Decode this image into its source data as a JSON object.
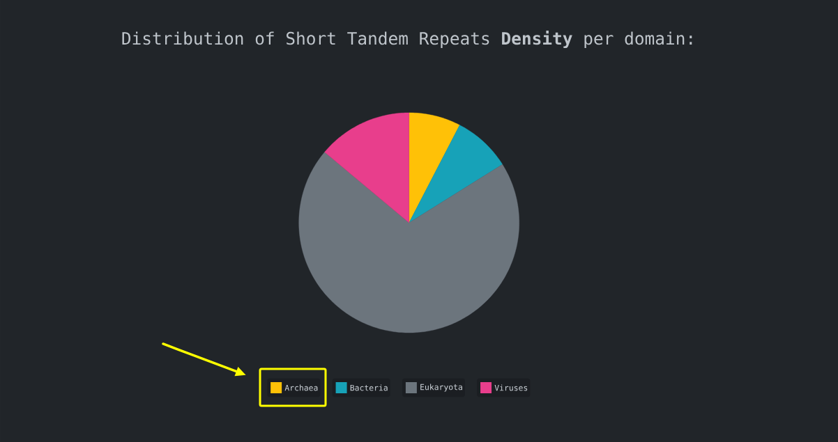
{
  "chart_data": {
    "type": "pie",
    "title": "Distribution of Short Tandem Repeats **Density** per domain:",
    "categories": [
      "Archaea",
      "Bacteria",
      "Eukaryota",
      "Viruses"
    ],
    "values": [
      7.6,
      8.5,
      70.0,
      13.9
    ],
    "colors": [
      "#ffc107",
      "#17a2b8",
      "#6c757d",
      "#e83e8c"
    ],
    "legend": "bottom"
  }
}
